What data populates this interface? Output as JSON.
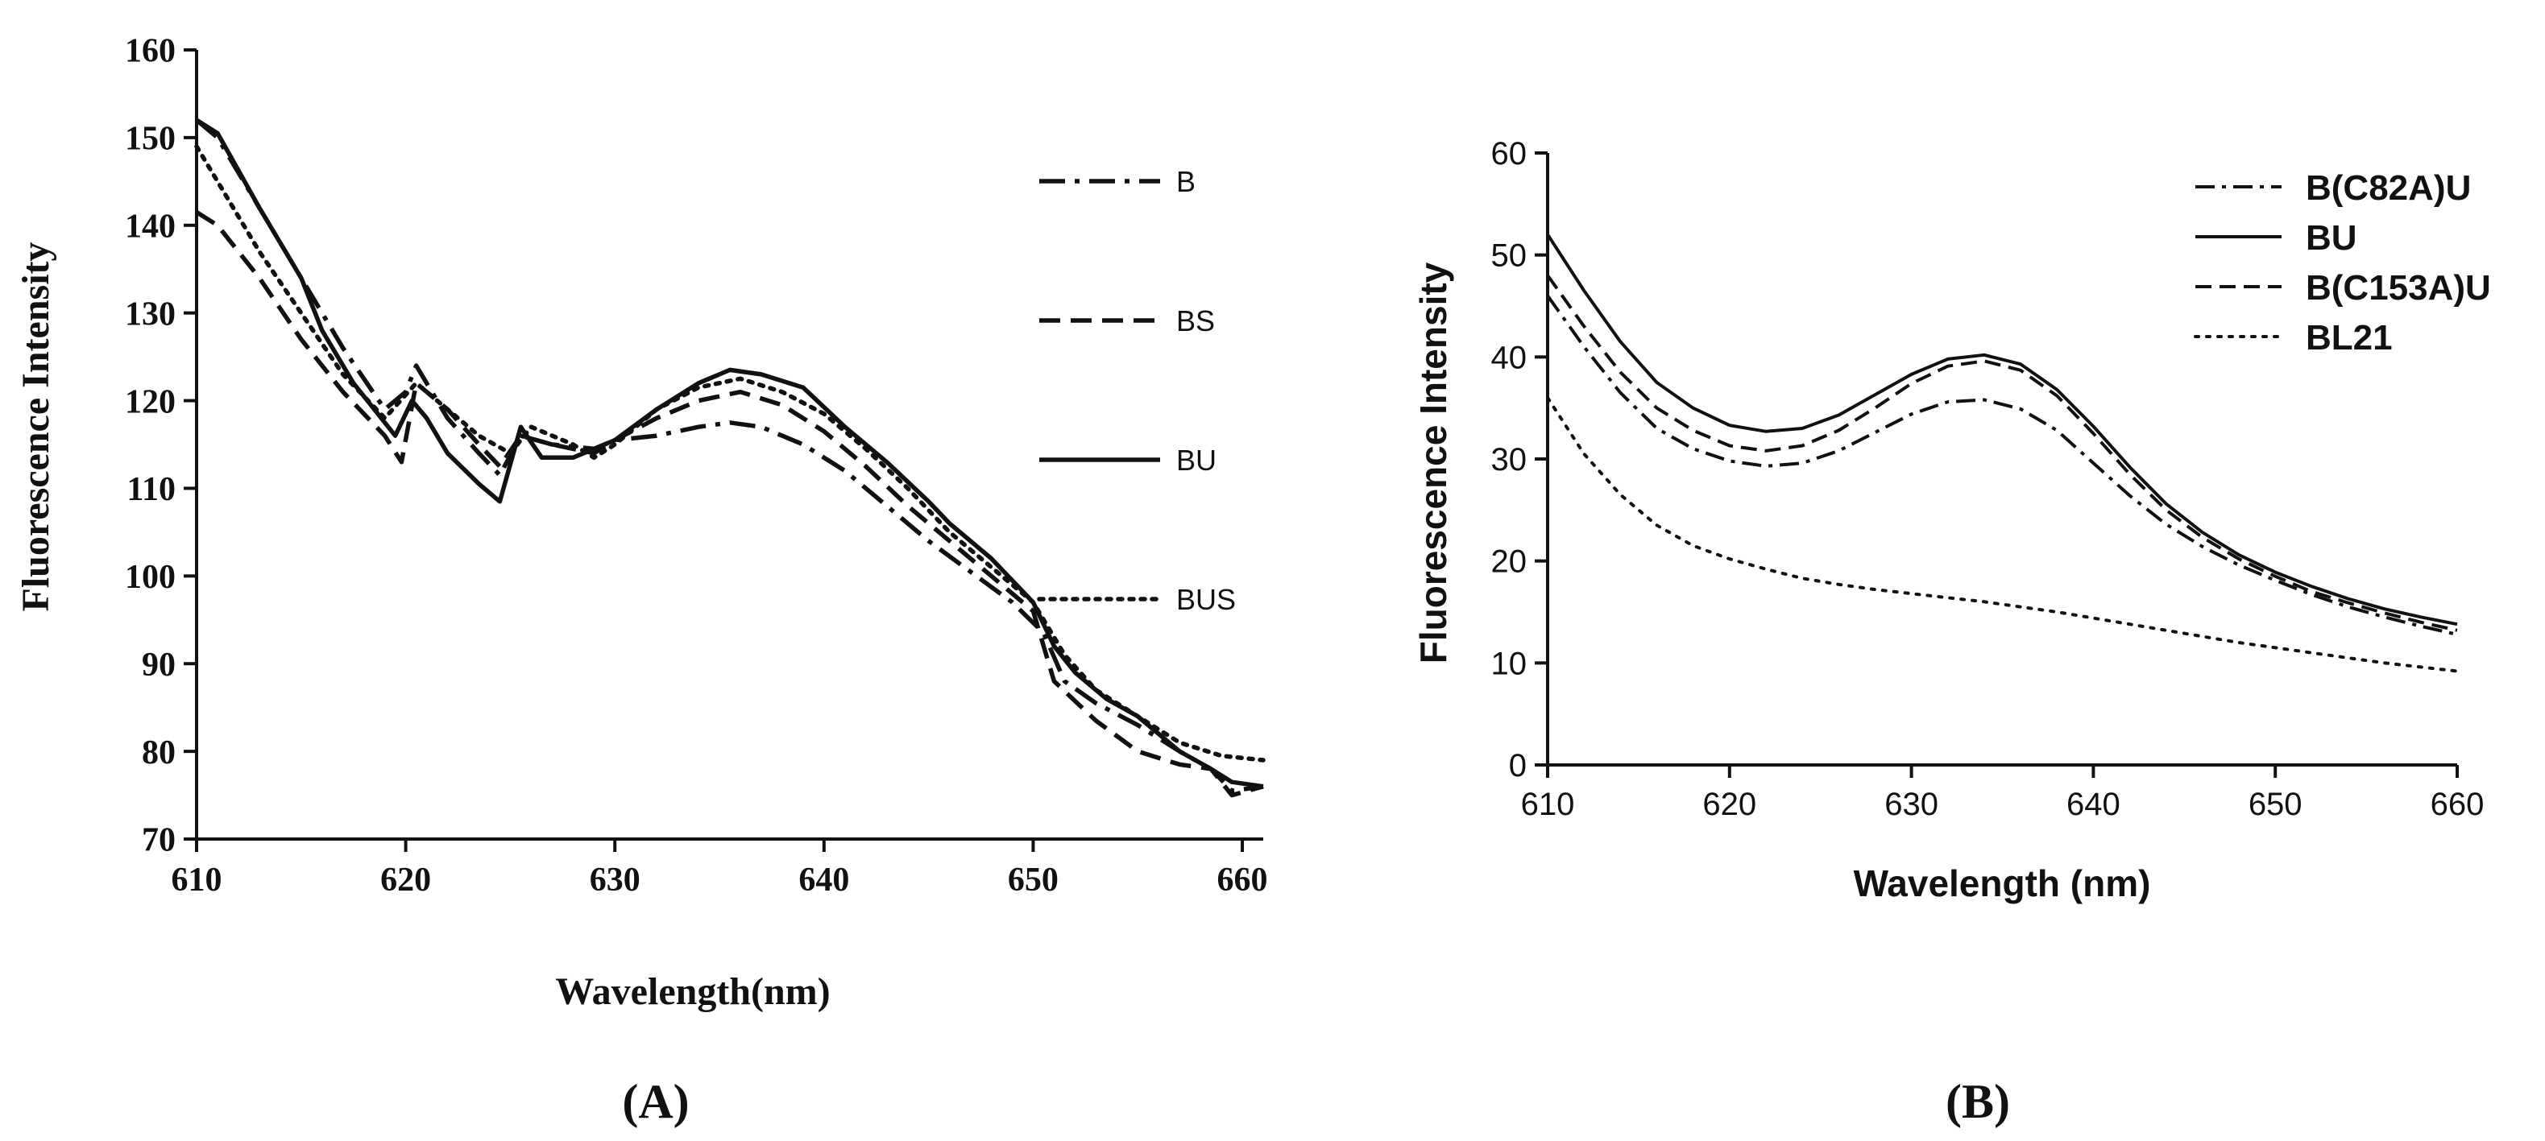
{
  "chart_data": [
    {
      "panel_label": "(A)",
      "type": "line",
      "title": "",
      "xlabel": "Wavelength(nm)",
      "ylabel": "Fluorescence Intensity",
      "xlim": [
        610,
        661
      ],
      "ylim": [
        70,
        160
      ],
      "xticks": [
        610,
        620,
        630,
        640,
        650,
        660
      ],
      "yticks": [
        70,
        80,
        90,
        100,
        110,
        120,
        130,
        140,
        150,
        160
      ],
      "grid": false,
      "legend_position": "top-right",
      "series": [
        {
          "name": "B",
          "style": "dashdot",
          "points": [
            [
              610,
              152
            ],
            [
              611,
              150
            ],
            [
              613,
              142
            ],
            [
              615,
              134
            ],
            [
              617,
              126
            ],
            [
              619,
              119
            ],
            [
              620,
              121
            ],
            [
              620.5,
              124
            ],
            [
              622,
              118
            ],
            [
              623.5,
              114
            ],
            [
              624.5,
              111.5
            ],
            [
              625.5,
              116
            ],
            [
              627,
              115
            ],
            [
              629,
              114.5
            ],
            [
              630,
              115.5
            ],
            [
              632,
              116
            ],
            [
              634,
              117
            ],
            [
              635.5,
              117.5
            ],
            [
              637,
              117
            ],
            [
              639,
              115
            ],
            [
              641,
              112
            ],
            [
              643,
              108
            ],
            [
              645,
              104
            ],
            [
              647,
              100.5
            ],
            [
              649,
              97
            ],
            [
              650.5,
              93.5
            ],
            [
              651.5,
              88
            ],
            [
              653,
              85.5
            ],
            [
              655,
              83
            ],
            [
              657,
              80
            ],
            [
              658.5,
              78
            ],
            [
              659.5,
              75.5
            ],
            [
              661,
              76
            ]
          ]
        },
        {
          "name": "BS",
          "style": "dashed",
          "points": [
            [
              610,
              141.5
            ],
            [
              611,
              140
            ],
            [
              613,
              134
            ],
            [
              615,
              127
            ],
            [
              617,
              121
            ],
            [
              619,
              116
            ],
            [
              619.8,
              113
            ],
            [
              620.5,
              122
            ],
            [
              622,
              119
            ],
            [
              623.5,
              115
            ],
            [
              624.5,
              112.5
            ],
            [
              625.5,
              116
            ],
            [
              627,
              115
            ],
            [
              629,
              114
            ],
            [
              630,
              115.5
            ],
            [
              632,
              118
            ],
            [
              634,
              120
            ],
            [
              636,
              121
            ],
            [
              638,
              119.5
            ],
            [
              640,
              116.5
            ],
            [
              642,
              112.5
            ],
            [
              644,
              108
            ],
            [
              646,
              104
            ],
            [
              648,
              100
            ],
            [
              650,
              96
            ],
            [
              651,
              88
            ],
            [
              653,
              83.5
            ],
            [
              655,
              80
            ],
            [
              657,
              78.5
            ],
            [
              658.5,
              78
            ],
            [
              659.5,
              75
            ],
            [
              661,
              76
            ]
          ]
        },
        {
          "name": "BU",
          "style": "solid",
          "points": [
            [
              610,
              152
            ],
            [
              611,
              150.5
            ],
            [
              613,
              142
            ],
            [
              615,
              134
            ],
            [
              616,
              128
            ],
            [
              617.5,
              122
            ],
            [
              619.5,
              116
            ],
            [
              620.3,
              120
            ],
            [
              621,
              118
            ],
            [
              622,
              114
            ],
            [
              623.5,
              110.5
            ],
            [
              624.5,
              108.5
            ],
            [
              625.5,
              117
            ],
            [
              626.5,
              113.5
            ],
            [
              628,
              113.5
            ],
            [
              630,
              115.5
            ],
            [
              632,
              119
            ],
            [
              634,
              122
            ],
            [
              635.5,
              123.5
            ],
            [
              637,
              123
            ],
            [
              639,
              121.5
            ],
            [
              641,
              117
            ],
            [
              643,
              113
            ],
            [
              645,
              108.5
            ],
            [
              646,
              106
            ],
            [
              648,
              102
            ],
            [
              650,
              97
            ],
            [
              651,
              92
            ],
            [
              652,
              89
            ],
            [
              653.5,
              86
            ],
            [
              655,
              84
            ],
            [
              657,
              80
            ],
            [
              658.5,
              78
            ],
            [
              659.5,
              76.5
            ],
            [
              661,
              76
            ]
          ]
        },
        {
          "name": "BUS",
          "style": "dotted",
          "points": [
            [
              610,
              149
            ],
            [
              611,
              145
            ],
            [
              613,
              137
            ],
            [
              615,
              130
            ],
            [
              617,
              123
            ],
            [
              619,
              118
            ],
            [
              620.5,
              122
            ],
            [
              622,
              119
            ],
            [
              623.5,
              116
            ],
            [
              625,
              114
            ],
            [
              626,
              117
            ],
            [
              628,
              115
            ],
            [
              629,
              113.5
            ],
            [
              630,
              115
            ],
            [
              632,
              119
            ],
            [
              634,
              121.5
            ],
            [
              636,
              122.5
            ],
            [
              638,
              121
            ],
            [
              640,
              118.5
            ],
            [
              642,
              114.5
            ],
            [
              644,
              110
            ],
            [
              646,
              105
            ],
            [
              648,
              101
            ],
            [
              650,
              97
            ],
            [
              651.5,
              91
            ],
            [
              653,
              87
            ],
            [
              655,
              84
            ],
            [
              657,
              81
            ],
            [
              659,
              79.5
            ],
            [
              661,
              79
            ]
          ]
        }
      ]
    },
    {
      "panel_label": "(B)",
      "type": "line",
      "title": "",
      "xlabel": "Wavelength (nm)",
      "ylabel": "Fluorescence Intensity",
      "xlim": [
        610,
        660
      ],
      "ylim": [
        0,
        60
      ],
      "xticks": [
        610,
        620,
        630,
        640,
        650,
        660
      ],
      "yticks": [
        0,
        10,
        20,
        30,
        40,
        50,
        60
      ],
      "grid": false,
      "legend_position": "top-right",
      "series": [
        {
          "name": "B(C82A)U",
          "style": "dashdot",
          "points": [
            [
              610,
              46
            ],
            [
              612,
              41
            ],
            [
              614,
              36.5
            ],
            [
              616,
              33
            ],
            [
              618,
              31
            ],
            [
              620,
              29.8
            ],
            [
              622,
              29.3
            ],
            [
              624,
              29.6
            ],
            [
              626,
              30.8
            ],
            [
              628,
              32.6
            ],
            [
              630,
              34.4
            ],
            [
              632,
              35.6
            ],
            [
              634,
              35.8
            ],
            [
              636,
              34.9
            ],
            [
              638,
              32.8
            ],
            [
              640,
              29.6
            ],
            [
              642,
              26.4
            ],
            [
              644,
              23.6
            ],
            [
              646,
              21.4
            ],
            [
              648,
              19.6
            ],
            [
              650,
              18.1
            ],
            [
              652,
              16.7
            ],
            [
              654,
              15.5
            ],
            [
              656,
              14.5
            ],
            [
              658,
              13.6
            ],
            [
              660,
              12.8
            ]
          ]
        },
        {
          "name": "BU",
          "style": "solid",
          "points": [
            [
              610,
              52
            ],
            [
              612,
              46.5
            ],
            [
              614,
              41.5
            ],
            [
              616,
              37.5
            ],
            [
              618,
              35
            ],
            [
              620,
              33.3
            ],
            [
              622,
              32.7
            ],
            [
              624,
              33
            ],
            [
              626,
              34.3
            ],
            [
              628,
              36.3
            ],
            [
              630,
              38.3
            ],
            [
              632,
              39.8
            ],
            [
              634,
              40.2
            ],
            [
              636,
              39.3
            ],
            [
              638,
              36.8
            ],
            [
              640,
              33.2
            ],
            [
              642,
              29.2
            ],
            [
              644,
              25.6
            ],
            [
              646,
              22.8
            ],
            [
              648,
              20.6
            ],
            [
              650,
              18.9
            ],
            [
              652,
              17.5
            ],
            [
              654,
              16.3
            ],
            [
              656,
              15.3
            ],
            [
              658,
              14.5
            ],
            [
              660,
              13.8
            ]
          ]
        },
        {
          "name": "B(C153A)U",
          "style": "dashed",
          "points": [
            [
              610,
              48
            ],
            [
              612,
              43
            ],
            [
              614,
              38.5
            ],
            [
              616,
              35
            ],
            [
              618,
              32.8
            ],
            [
              620,
              31.3
            ],
            [
              622,
              30.8
            ],
            [
              624,
              31.3
            ],
            [
              626,
              32.8
            ],
            [
              628,
              35
            ],
            [
              630,
              37.4
            ],
            [
              632,
              39.1
            ],
            [
              634,
              39.6
            ],
            [
              636,
              38.7
            ],
            [
              638,
              36.2
            ],
            [
              640,
              32.5
            ],
            [
              642,
              28.5
            ],
            [
              644,
              25
            ],
            [
              646,
              22.3
            ],
            [
              648,
              20.2
            ],
            [
              650,
              18.5
            ],
            [
              652,
              17
            ],
            [
              654,
              15.9
            ],
            [
              656,
              14.9
            ],
            [
              658,
              14
            ],
            [
              660,
              13.2
            ]
          ]
        },
        {
          "name": "BL21",
          "style": "dotted",
          "points": [
            [
              610,
              36
            ],
            [
              612,
              30.5
            ],
            [
              614,
              26.5
            ],
            [
              616,
              23.5
            ],
            [
              618,
              21.5
            ],
            [
              620,
              20.2
            ],
            [
              622,
              19.2
            ],
            [
              624,
              18.3
            ],
            [
              626,
              17.7
            ],
            [
              628,
              17.2
            ],
            [
              630,
              16.8
            ],
            [
              632,
              16.4
            ],
            [
              634,
              16
            ],
            [
              636,
              15.5
            ],
            [
              638,
              15
            ],
            [
              640,
              14.4
            ],
            [
              642,
              13.8
            ],
            [
              644,
              13.2
            ],
            [
              646,
              12.6
            ],
            [
              648,
              12
            ],
            [
              650,
              11.5
            ],
            [
              652,
              11
            ],
            [
              654,
              10.5
            ],
            [
              656,
              10
            ],
            [
              658,
              9.6
            ],
            [
              660,
              9.2
            ]
          ]
        }
      ]
    }
  ]
}
